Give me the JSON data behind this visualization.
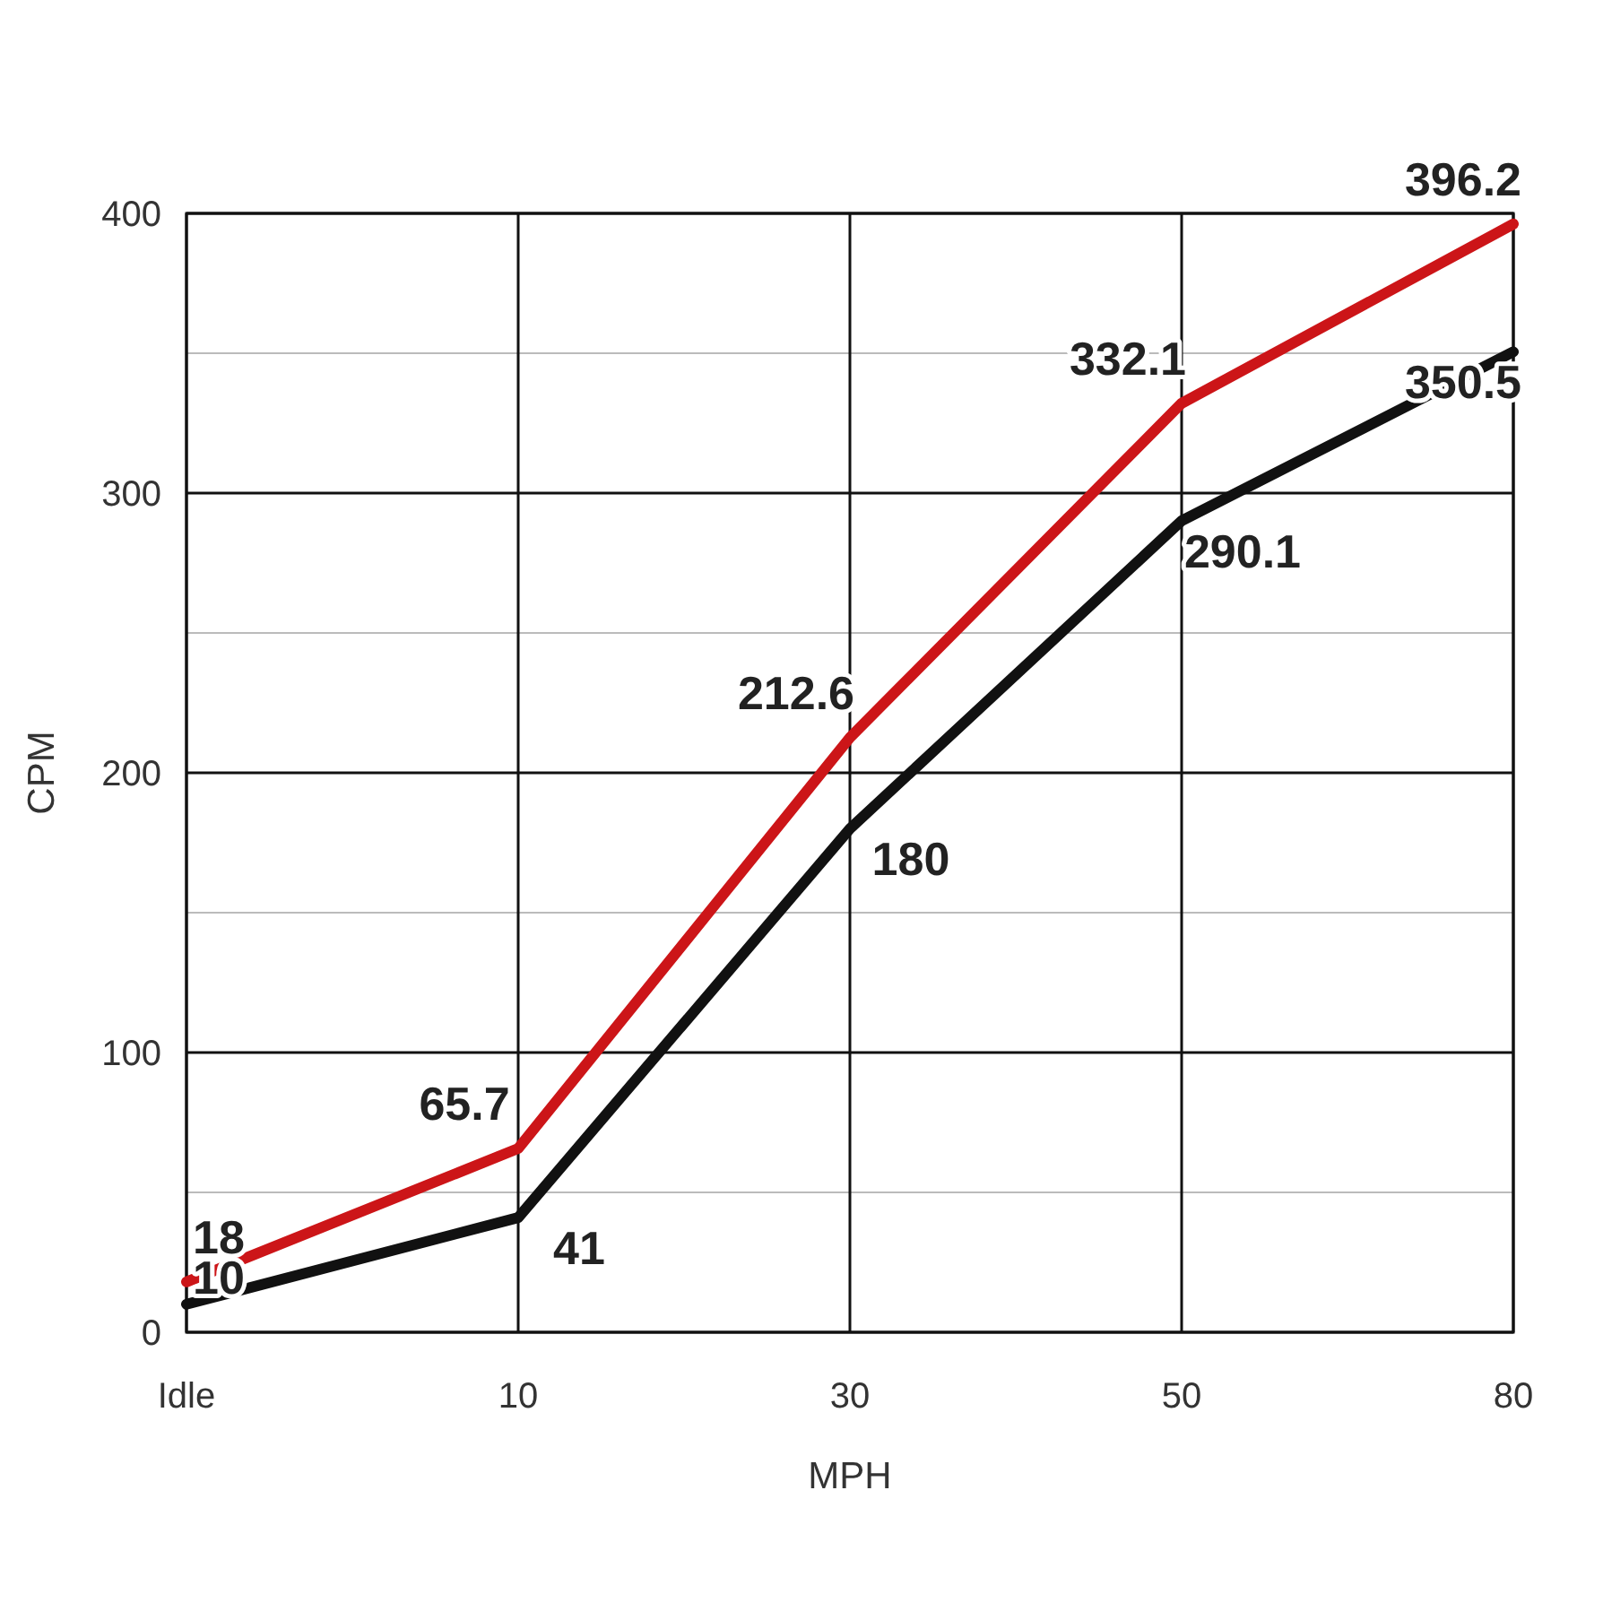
{
  "chart_data": {
    "type": "line",
    "xlabel": "MPH",
    "ylabel": "CPM",
    "categories": [
      "Idle",
      "10",
      "30",
      "50",
      "80"
    ],
    "series": [
      {
        "color": "#111111",
        "values": [
          10,
          41,
          180,
          290.1,
          350.5
        ]
      },
      {
        "color": "#cc1518",
        "values": [
          18,
          65.7,
          212.6,
          332.1,
          396.2
        ]
      }
    ],
    "ylim": [
      0,
      400
    ],
    "yticks": [
      0,
      {
        "value": 50,
        "label": null
      },
      100,
      {
        "value": 150,
        "label": null
      },
      200,
      {
        "value": 250,
        "label": null
      },
      300,
      {
        "value": 350,
        "label": null
      },
      400
    ],
    "grid": true,
    "data_labels": true,
    "marker": "none",
    "line_style": "solid"
  }
}
